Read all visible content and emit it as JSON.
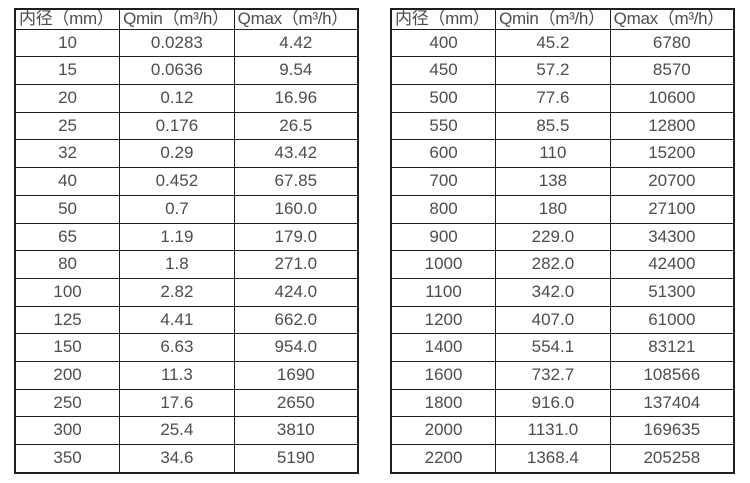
{
  "page": {
    "background_color": "#ffffff",
    "border_color": "#1f1f1f",
    "text_color": "#4d4d4d"
  },
  "tables": [
    {
      "name": "flow-spec-table-small-diameters",
      "headers": [
        "内径（mm）",
        "Qmin（m³/h）",
        "Qmax（m³/h）"
      ],
      "rows": [
        [
          "10",
          "0.0283",
          "4.42"
        ],
        [
          "15",
          "0.0636",
          "9.54"
        ],
        [
          "20",
          "0.12",
          "16.96"
        ],
        [
          "25",
          "0.176",
          "26.5"
        ],
        [
          "32",
          "0.29",
          "43.42"
        ],
        [
          "40",
          "0.452",
          "67.85"
        ],
        [
          "50",
          "0.7",
          "160.0"
        ],
        [
          "65",
          "1.19",
          "179.0"
        ],
        [
          "80",
          "1.8",
          "271.0"
        ],
        [
          "100",
          "2.82",
          "424.0"
        ],
        [
          "125",
          "4.41",
          "662.0"
        ],
        [
          "150",
          "6.63",
          "954.0"
        ],
        [
          "200",
          "11.3",
          "1690"
        ],
        [
          "250",
          "17.6",
          "2650"
        ],
        [
          "300",
          "25.4",
          "3810"
        ],
        [
          "350",
          "34.6",
          "5190"
        ]
      ]
    },
    {
      "name": "flow-spec-table-large-diameters",
      "headers": [
        "内径（mm）",
        "Qmin（m³/h）",
        "Qmax（m³/h）"
      ],
      "rows": [
        [
          "400",
          "45.2",
          "6780"
        ],
        [
          "450",
          "57.2",
          "8570"
        ],
        [
          "500",
          "77.6",
          "10600"
        ],
        [
          "550",
          "85.5",
          "12800"
        ],
        [
          "600",
          "110",
          "15200"
        ],
        [
          "700",
          "138",
          "20700"
        ],
        [
          "800",
          "180",
          "27100"
        ],
        [
          "900",
          "229.0",
          "34300"
        ],
        [
          "1000",
          "282.0",
          "42400"
        ],
        [
          "1100",
          "342.0",
          "51300"
        ],
        [
          "1200",
          "407.0",
          "61000"
        ],
        [
          "1400",
          "554.1",
          "83121"
        ],
        [
          "1600",
          "732.7",
          "108566"
        ],
        [
          "1800",
          "916.0",
          "137404"
        ],
        [
          "2000",
          "1131.0",
          "169635"
        ],
        [
          "2200",
          "1368.4",
          "205258"
        ]
      ]
    }
  ]
}
